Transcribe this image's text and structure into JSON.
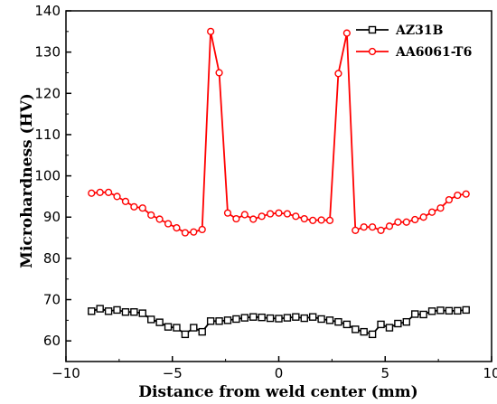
{
  "chart_data": {
    "type": "line",
    "title": "",
    "xlabel": "Distance from weld center (mm)",
    "ylabel": "Microhardness (HV)",
    "xlim": [
      -10,
      10
    ],
    "ylim": [
      55,
      140
    ],
    "xticks": [
      -10,
      -5,
      0,
      5,
      10
    ],
    "yticks": [
      60,
      70,
      80,
      90,
      100,
      110,
      120,
      130,
      140
    ],
    "grid": false,
    "legend_position": "top-right",
    "series": [
      {
        "name": "AZ31B",
        "line_color": "#000000",
        "marker": "open-square",
        "marker_fill": "#ffffff",
        "marker_edge": "#000000",
        "x": [
          -8.8,
          -8.4,
          -8.0,
          -7.6,
          -7.2,
          -6.8,
          -6.4,
          -6.0,
          -5.6,
          -5.2,
          -4.8,
          -4.4,
          -4.0,
          -3.6,
          -3.2,
          -2.8,
          -2.4,
          -2.0,
          -1.6,
          -1.2,
          -0.8,
          -0.4,
          0.0,
          0.4,
          0.8,
          1.2,
          1.6,
          2.0,
          2.4,
          2.8,
          3.2,
          3.6,
          4.0,
          4.4,
          4.8,
          5.2,
          5.6,
          6.0,
          6.4,
          6.8,
          7.2,
          7.6,
          8.0,
          8.4,
          8.8
        ],
        "y": [
          67.2,
          67.8,
          67.2,
          67.5,
          67.0,
          67.0,
          66.7,
          65.2,
          64.5,
          63.4,
          63.2,
          61.6,
          63.2,
          62.2,
          64.8,
          64.8,
          65.0,
          65.3,
          65.6,
          65.8,
          65.7,
          65.5,
          65.4,
          65.6,
          65.8,
          65.5,
          65.8,
          65.3,
          65.0,
          64.6,
          64.0,
          62.8,
          62.2,
          61.6,
          64.0,
          63.2,
          64.2,
          64.6,
          66.5,
          66.4,
          67.2,
          67.4,
          67.3,
          67.3,
          67.5
        ]
      },
      {
        "name": "AA6061-T6",
        "line_color": "#ff0000",
        "marker": "open-circle",
        "marker_fill": "#ffffff",
        "marker_edge": "#ff0000",
        "x": [
          -8.8,
          -8.4,
          -8.0,
          -7.6,
          -7.2,
          -6.8,
          -6.4,
          -6.0,
          -5.6,
          -5.2,
          -4.8,
          -4.4,
          -4.0,
          -3.6,
          -3.2,
          -2.8,
          -2.4,
          -2.0,
          -1.6,
          -1.2,
          -0.8,
          -0.4,
          0.0,
          0.4,
          0.8,
          1.2,
          1.6,
          2.0,
          2.4,
          2.8,
          3.2,
          3.6,
          4.0,
          4.4,
          4.8,
          5.2,
          5.6,
          6.0,
          6.4,
          6.8,
          7.2,
          7.6,
          8.0,
          8.4,
          8.8
        ],
        "y": [
          95.8,
          96.0,
          96.0,
          95.0,
          93.8,
          92.5,
          92.2,
          90.5,
          89.5,
          88.4,
          87.4,
          86.2,
          86.4,
          87.0,
          135.0,
          125.0,
          91.0,
          89.6,
          90.6,
          89.5,
          90.2,
          90.8,
          91.0,
          90.8,
          90.2,
          89.6,
          89.2,
          89.3,
          89.2,
          124.8,
          134.6,
          86.8,
          87.6,
          87.6,
          86.8,
          87.8,
          88.8,
          88.8,
          89.4,
          90.0,
          91.2,
          92.2,
          94.2,
          95.3,
          95.6
        ]
      }
    ]
  }
}
